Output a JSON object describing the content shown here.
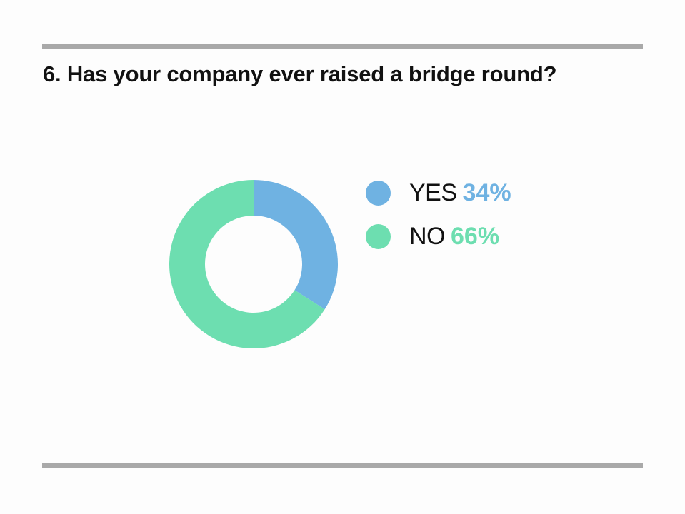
{
  "question": "6. Has your company ever raised a bridge round?",
  "colors": {
    "yes": "#6fb2e2",
    "no": "#6ddeb0",
    "rule": "#a9a9a9"
  },
  "chart_data": {
    "type": "pie",
    "donut": true,
    "title": "6. Has your company ever raised a bridge round?",
    "slices": [
      {
        "label": "YES",
        "value": 34,
        "display": "34%",
        "color": "#6fb2e2"
      },
      {
        "label": "NO",
        "value": 66,
        "display": "66%",
        "color": "#6ddeb0"
      }
    ],
    "legend_position": "right"
  }
}
